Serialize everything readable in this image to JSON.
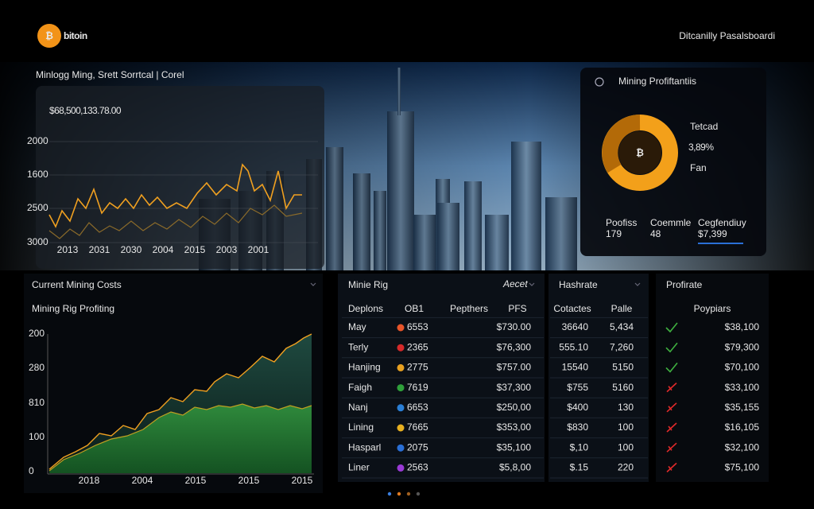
{
  "header": {
    "logo_icon": "₿",
    "logo": "bitoin",
    "title": "Ditcanilly Pasalsboardi"
  },
  "hero": {
    "label": "Minlogg Ming, Srett Sorrtcal | Corel",
    "price": "$68,500,133.78.00",
    "y_labels": [
      "2000",
      "1600",
      "2500",
      "3000"
    ],
    "x_labels": [
      "2013",
      "2031",
      "2030",
      "2004",
      "2015",
      "2003",
      "2001"
    ]
  },
  "profit_card": {
    "title": "Mining Profiftantiis",
    "coin_icon": "₿",
    "label_top": "Tetcad",
    "percent": "3,89%",
    "label_bottom": "Fan",
    "stats": [
      {
        "label": "Poofiss",
        "value": "179"
      },
      {
        "label": "Coemmle",
        "value": "48"
      },
      {
        "label": "Cegfendiuy",
        "value": "$7,399"
      }
    ]
  },
  "costs": {
    "title": "Current Mining Costs",
    "subtitle": "Mining Rig Profiting",
    "y_labels": [
      "200",
      "280",
      "810",
      "100",
      "0"
    ],
    "x_labels": [
      "2018",
      "2004",
      "2015",
      "2015",
      "2015"
    ]
  },
  "rig": {
    "title": "Minie Rig",
    "filter": "Aecet",
    "columns": [
      "Deplons",
      "OB1",
      "Pepthers",
      "PFS"
    ],
    "rows": [
      [
        "May",
        "6553",
        "$730.00"
      ],
      [
        "Terly",
        "2365",
        "$76,300"
      ],
      [
        "Hanjing",
        "2775",
        "$757.00"
      ],
      [
        "Faigh",
        "7619",
        "$37,300"
      ],
      [
        "Nanj",
        "6653",
        "$250,00"
      ],
      [
        "Lining",
        "7665",
        "$353,00"
      ],
      [
        "Hasparl",
        "2075",
        "$35,100"
      ],
      [
        "Liner",
        "2563",
        "$5,8,00"
      ]
    ]
  },
  "hashrate": {
    "title": "Hashrate",
    "columns": [
      "Cotactes",
      "Palle"
    ],
    "rows": [
      [
        "36640",
        "5,434"
      ],
      [
        "555.10",
        "7,260"
      ],
      [
        "15540",
        "5150"
      ],
      [
        "$755",
        "5160"
      ],
      [
        "$400",
        "130"
      ],
      [
        "$830",
        "100"
      ],
      [
        "$,10",
        "100"
      ],
      [
        "$.15",
        "220"
      ]
    ]
  },
  "profit": {
    "title": "Profirate",
    "column": "Poypiars",
    "rows": [
      "$38,100",
      "$79,300",
      "$70,100",
      "$33,100",
      "$35,155",
      "$16,105",
      "$32,100",
      "$75,100"
    ]
  }
}
